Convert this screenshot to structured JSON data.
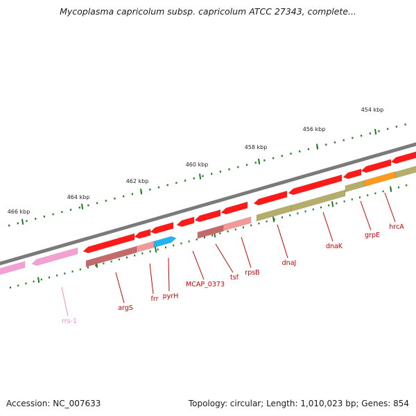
{
  "title": "Mycoplasma capricolum subsp. capricolum ATCC 27343, complete...",
  "footer": {
    "accession": "Accession: NC_007633",
    "topology": "Topology: circular; Length: 1,010,023 bp; Genes: 854"
  },
  "colors": {
    "backbone": "#7a7a7a",
    "tick": "#1f7a1f",
    "cds_red": "#ff1a1a",
    "cds_pink_light": "#f29a9a",
    "cds_brown": "#c46a6a",
    "cds_olive": "#b5ad6a",
    "cds_cyan": "#22b4ee",
    "cds_orange": "#ff9a1a",
    "rrna_pink": "#f5a0d2",
    "label_red": "#cc0000",
    "label_pink": "#ee8ec4"
  },
  "scale_labels": [
    "454 kbp",
    "456 kbp",
    "458 kbp",
    "460 kbp",
    "462 kbp",
    "464 kbp",
    "466 kbp"
  ],
  "genes": [
    {
      "name": "hrcA",
      "color_key": "label_red"
    },
    {
      "name": "grpE",
      "color_key": "label_red"
    },
    {
      "name": "dnaK",
      "color_key": "label_red"
    },
    {
      "name": "dnaJ",
      "color_key": "label_red"
    },
    {
      "name": "rpsB",
      "color_key": "label_red"
    },
    {
      "name": "tsf",
      "color_key": "label_red"
    },
    {
      "name": "MCAP_0373",
      "color_key": "label_red"
    },
    {
      "name": "pyrH",
      "color_key": "label_red"
    },
    {
      "name": "frr",
      "color_key": "label_red"
    },
    {
      "name": "argS",
      "color_key": "label_red"
    },
    {
      "name": "rrs-1",
      "color_key": "label_pink"
    }
  ]
}
